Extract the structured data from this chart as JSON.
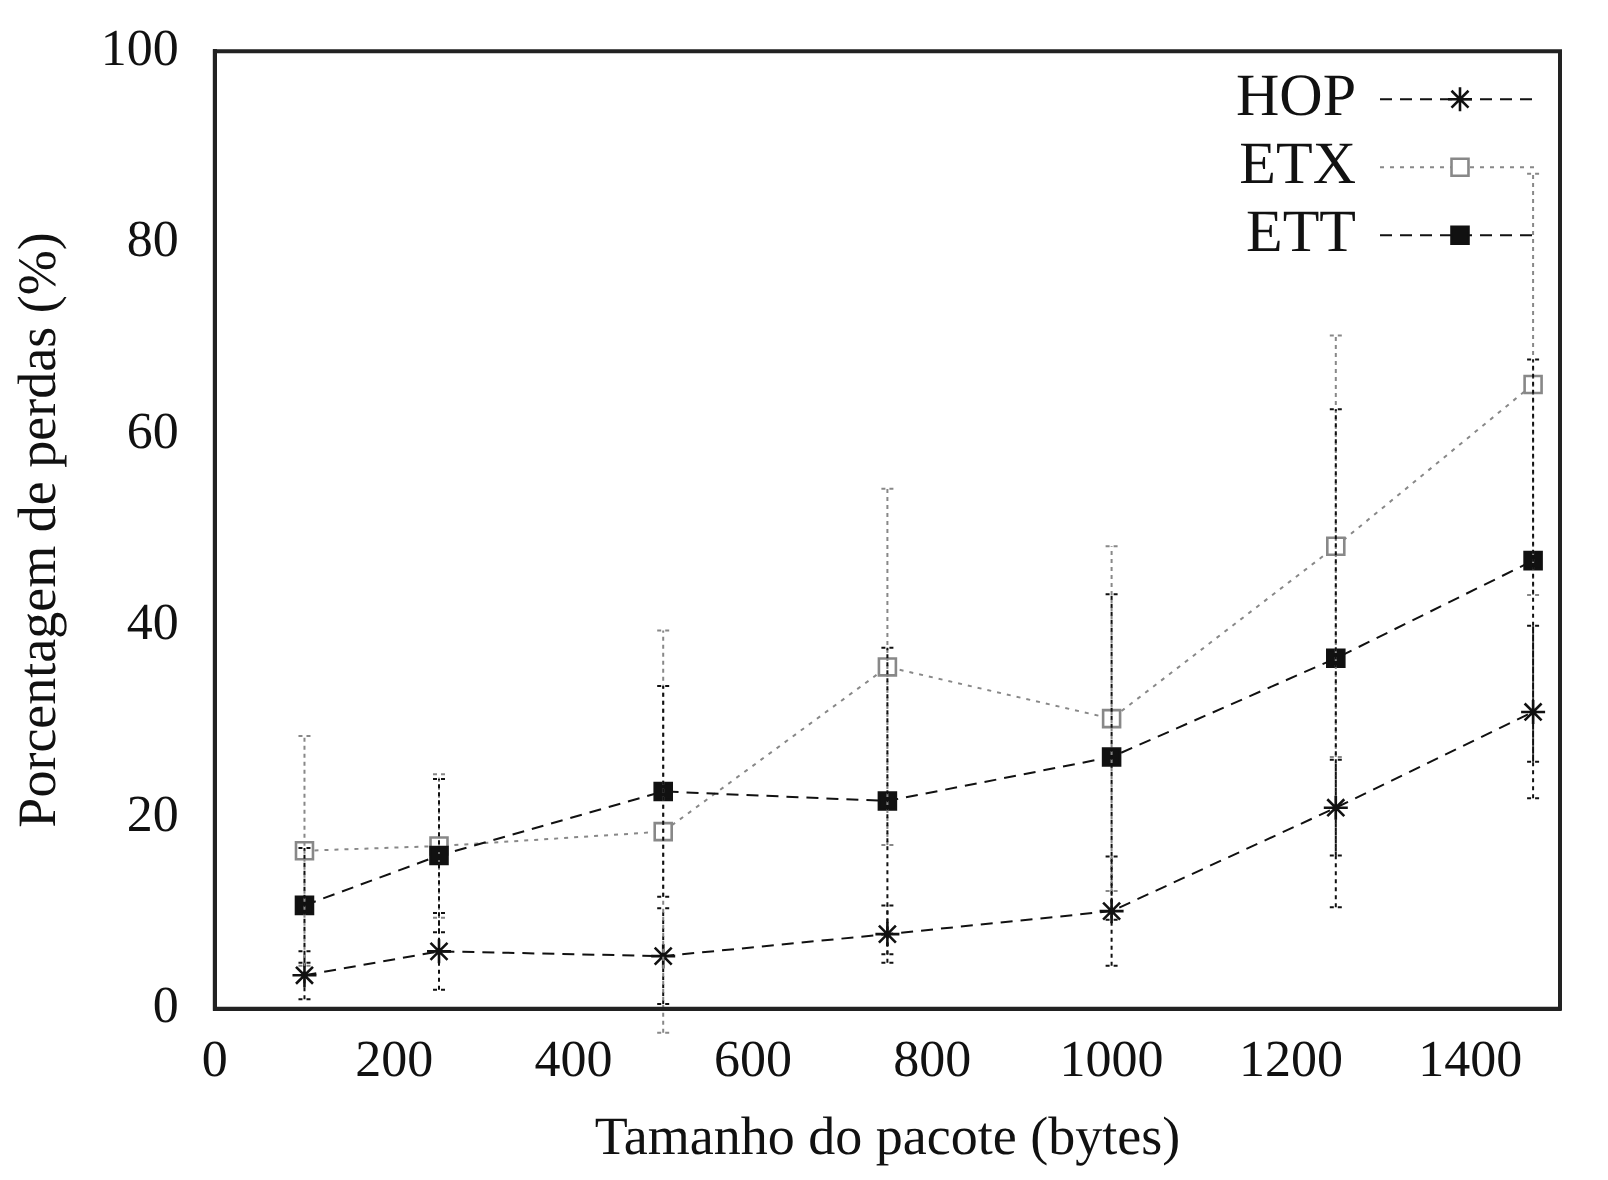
{
  "chart_data": {
    "type": "line",
    "xlabel": "Tamanho do pacote (bytes)",
    "ylabel": "Porcentagem de perdas (%)",
    "x": [
      100,
      250,
      500,
      750,
      1000,
      1250,
      1470
    ],
    "xlim": [
      0,
      1500
    ],
    "xticks": [
      0,
      200,
      400,
      600,
      800,
      1000,
      1200,
      1400
    ],
    "ylim": [
      0,
      100
    ],
    "yticks": [
      0,
      20,
      40,
      60,
      80,
      100
    ],
    "grid": false,
    "legend": "top right",
    "series": [
      {
        "name": "HOP",
        "color": "#111111",
        "marker": "cross",
        "line_style": "dashed",
        "values": [
          3.5,
          6,
          5.5,
          7.8,
          10.2,
          21,
          31
        ],
        "errors": [
          2.5,
          4,
          5,
          3,
          5.7,
          5,
          9
        ]
      },
      {
        "name": "ETX",
        "color": "#888888",
        "marker": "square",
        "line_style": "dotted",
        "values": [
          16.5,
          17,
          18.5,
          35.7,
          30.3,
          48.3,
          65.2
        ],
        "errors": [
          12,
          7.5,
          21,
          18.6,
          18,
          22,
          22
        ]
      },
      {
        "name": "ETT",
        "color": "#111111",
        "marker": "square",
        "colors": [
          "#111111",
          "#111111",
          "#111111",
          "#111111",
          "#111111",
          "#111111",
          "#111111"
        ],
        "line_style": "dashed",
        "values": [
          10.8,
          16,
          22.7,
          21.7,
          26.3,
          36.6,
          46.8
        ],
        "errors": [
          6,
          8,
          11,
          16,
          17,
          26,
          21
        ]
      }
    ]
  }
}
